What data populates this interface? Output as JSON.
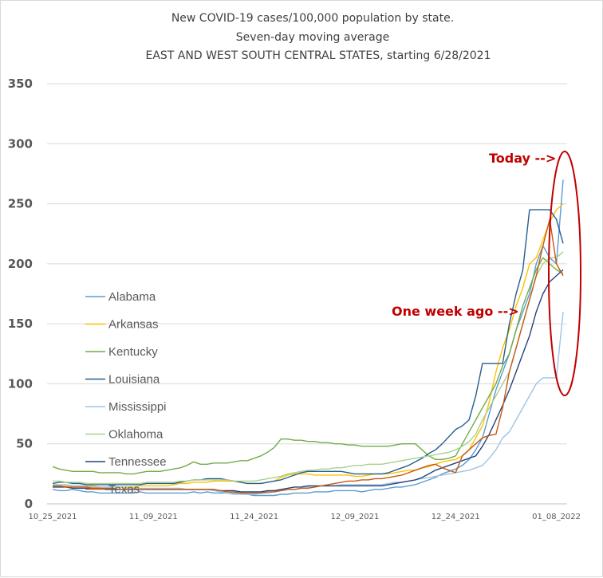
{
  "chart_data": {
    "type": "line",
    "title": [
      "New COVID-19 cases/100,000 population by state.",
      "Seven-day moving average",
      "EAST AND WEST SOUTH CENTRAL STATES, starting 6/28/2021"
    ],
    "xlabel": "",
    "ylabel": "",
    "ylim": [
      0,
      350
    ],
    "yticks": [
      0,
      50,
      100,
      150,
      200,
      250,
      300,
      350
    ],
    "xticks": [
      "10_25_2021",
      "11_09_2021",
      "11_24_2021",
      "12_09_2021",
      "12_24_2021",
      "01_08_2022"
    ],
    "x_start": "10_25_2021",
    "x_end": "01_13_2022",
    "grid": true,
    "legend_position": "left",
    "series": [
      {
        "name": "Alabama",
        "color": "#5b9bd5",
        "values": [
          12,
          11,
          11,
          12,
          11,
          10,
          10,
          9,
          9,
          9,
          9,
          9,
          9,
          10,
          9,
          9,
          9,
          9,
          9,
          9,
          9,
          10,
          9,
          10,
          9,
          9,
          9,
          9,
          9,
          8,
          7,
          7,
          7,
          7,
          8,
          8,
          9,
          9,
          9,
          10,
          10,
          10,
          11,
          11,
          11,
          11,
          10,
          11,
          12,
          12,
          13,
          14,
          14,
          15,
          16,
          18,
          20,
          22,
          25,
          27,
          29,
          32,
          37,
          45,
          55,
          75,
          95,
          110,
          125,
          145,
          160,
          175,
          200,
          215,
          205,
          200,
          270
        ]
      },
      {
        "name": "Arkansas",
        "color": "#ffc000",
        "values": [
          15,
          15,
          15,
          15,
          15,
          15,
          15,
          14,
          14,
          14,
          14,
          14,
          14,
          15,
          15,
          15,
          15,
          15,
          16,
          17,
          17,
          18,
          18,
          18,
          19,
          19,
          19,
          19,
          18,
          17,
          17,
          17,
          18,
          19,
          22,
          24,
          25,
          25,
          25,
          24,
          24,
          24,
          24,
          24,
          24,
          23,
          23,
          24,
          25,
          25,
          25,
          26,
          27,
          28,
          28,
          30,
          31,
          33,
          35,
          36,
          37,
          40,
          45,
          55,
          65,
          85,
          110,
          130,
          145,
          165,
          180,
          200,
          205,
          220,
          235,
          245,
          250
        ]
      },
      {
        "name": "Kentucky",
        "color": "#70ad47",
        "values": [
          31,
          29,
          28,
          27,
          27,
          27,
          27,
          26,
          26,
          26,
          26,
          25,
          25,
          26,
          27,
          27,
          27,
          28,
          29,
          30,
          32,
          35,
          33,
          33,
          34,
          34,
          34,
          35,
          36,
          36,
          38,
          40,
          43,
          47,
          54,
          54,
          53,
          53,
          52,
          52,
          51,
          51,
          50,
          50,
          49,
          49,
          48,
          48,
          48,
          48,
          48,
          49,
          50,
          50,
          50,
          45,
          40,
          37,
          37,
          38,
          40,
          50,
          60,
          70,
          80,
          90,
          100,
          115,
          125,
          145,
          165,
          180,
          195,
          205,
          200,
          195,
          192
        ]
      },
      {
        "name": "Louisiana",
        "color": "#255e91",
        "values": [
          17,
          18,
          18,
          17,
          17,
          16,
          16,
          16,
          16,
          16,
          16,
          16,
          16,
          16,
          17,
          17,
          17,
          17,
          17,
          18,
          19,
          20,
          20,
          21,
          21,
          21,
          20,
          19,
          18,
          17,
          17,
          17,
          18,
          19,
          20,
          22,
          24,
          26,
          27,
          27,
          27,
          27,
          27,
          27,
          26,
          25,
          25,
          25,
          25,
          25,
          26,
          28,
          30,
          32,
          35,
          38,
          42,
          45,
          50,
          56,
          62,
          65,
          70,
          90,
          117,
          117,
          117,
          117,
          150,
          175,
          195,
          245,
          245,
          245,
          245,
          237,
          217
        ]
      },
      {
        "name": "Mississippi",
        "color": "#9dc3e6",
        "values": [
          16,
          16,
          16,
          15,
          15,
          15,
          14,
          14,
          14,
          14,
          14,
          13,
          13,
          13,
          13,
          13,
          13,
          13,
          13,
          13,
          12,
          12,
          12,
          12,
          11,
          10,
          9,
          8,
          8,
          8,
          8,
          9,
          9,
          10,
          11,
          12,
          12,
          13,
          14,
          14,
          15,
          15,
          15,
          16,
          16,
          16,
          16,
          16,
          16,
          16,
          17,
          18,
          18,
          19,
          20,
          21,
          22,
          23,
          24,
          25,
          26,
          27,
          28,
          30,
          32,
          38,
          45,
          55,
          60,
          70,
          80,
          90,
          100,
          105,
          105,
          105,
          160
        ]
      },
      {
        "name": "Oklahoma",
        "color": "#a9d18e",
        "values": [
          19,
          19,
          18,
          18,
          18,
          17,
          17,
          17,
          17,
          17,
          17,
          17,
          17,
          17,
          18,
          18,
          18,
          18,
          18,
          19,
          19,
          20,
          20,
          20,
          20,
          20,
          20,
          19,
          19,
          19,
          19,
          20,
          21,
          22,
          23,
          25,
          26,
          27,
          28,
          28,
          29,
          29,
          30,
          30,
          31,
          32,
          32,
          33,
          33,
          33,
          34,
          35,
          36,
          37,
          38,
          39,
          40,
          41,
          42,
          43,
          45,
          48,
          52,
          58,
          70,
          80,
          90,
          100,
          110,
          130,
          150,
          170,
          190,
          200,
          205,
          205,
          210
        ]
      },
      {
        "name": "Tennessee",
        "color": "#264478",
        "values": [
          14,
          14,
          14,
          13,
          13,
          13,
          13,
          13,
          12,
          12,
          12,
          12,
          12,
          12,
          12,
          12,
          12,
          12,
          12,
          12,
          12,
          12,
          12,
          12,
          12,
          11,
          11,
          11,
          10,
          10,
          10,
          10,
          11,
          11,
          12,
          13,
          14,
          14,
          15,
          15,
          15,
          15,
          15,
          15,
          15,
          15,
          15,
          15,
          15,
          15,
          16,
          17,
          18,
          19,
          20,
          22,
          25,
          28,
          30,
          32,
          34,
          36,
          38,
          40,
          48,
          58,
          70,
          82,
          95,
          110,
          125,
          140,
          160,
          175,
          185,
          190,
          195
        ]
      },
      {
        "name": "Texas",
        "color": "#c55a11",
        "values": [
          15,
          15,
          14,
          14,
          14,
          14,
          13,
          13,
          13,
          13,
          12,
          12,
          12,
          12,
          12,
          12,
          12,
          12,
          12,
          12,
          12,
          12,
          12,
          12,
          12,
          11,
          10,
          10,
          9,
          9,
          9,
          9,
          10,
          10,
          11,
          12,
          12,
          13,
          13,
          14,
          15,
          16,
          17,
          18,
          19,
          19,
          20,
          20,
          21,
          21,
          22,
          23,
          24,
          26,
          28,
          30,
          32,
          33,
          30,
          28,
          26,
          40,
          45,
          50,
          55,
          57,
          58,
          80,
          110,
          130,
          150,
          170,
          190,
          215,
          237,
          200,
          190
        ]
      }
    ],
    "annotations": [
      "Today -->",
      "One week ago -->"
    ]
  }
}
